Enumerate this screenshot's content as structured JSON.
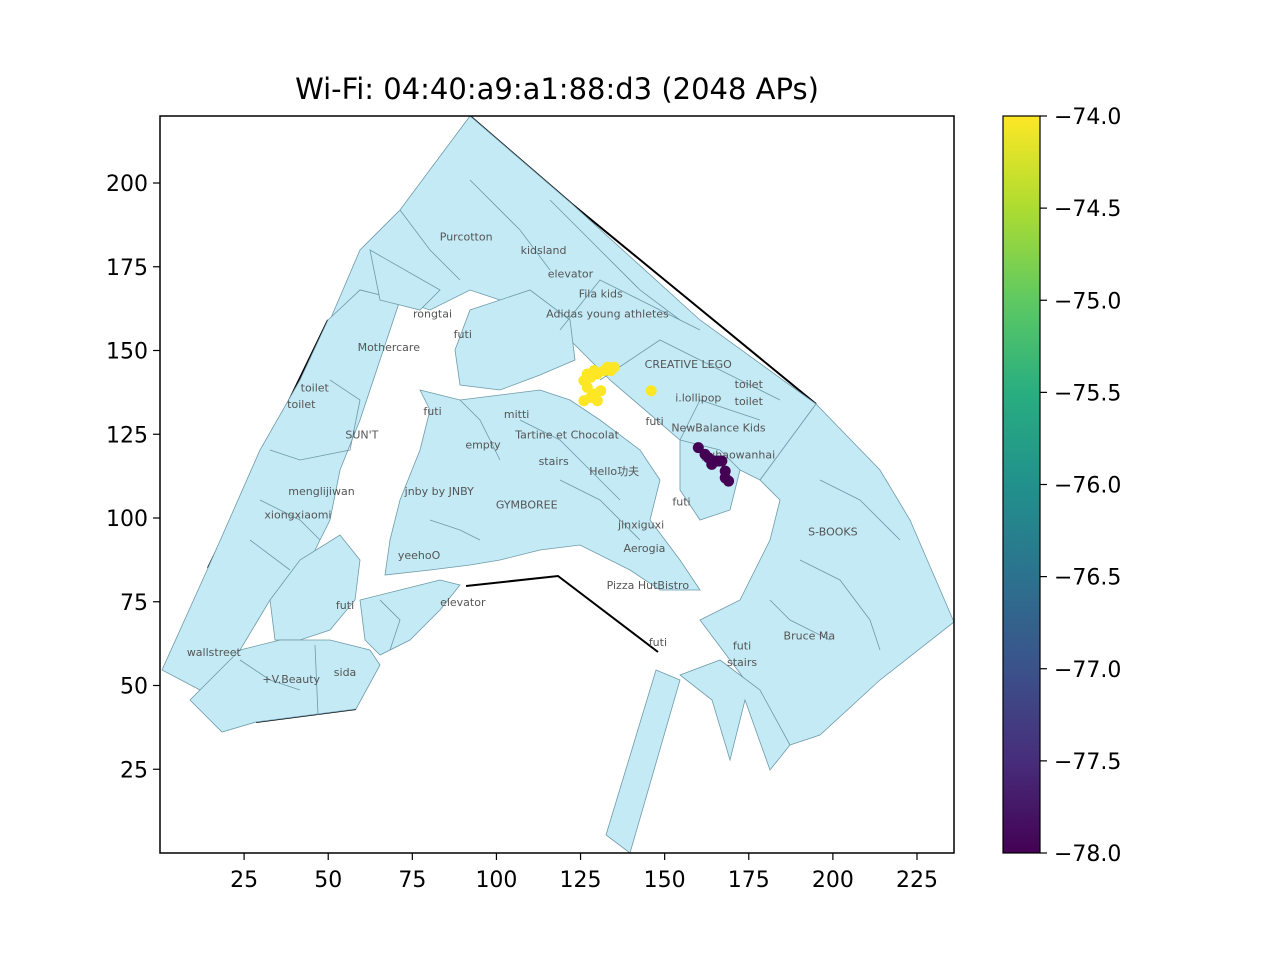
{
  "chart_data": {
    "type": "scatter",
    "title": "Wi-Fi: 04:40:a9:a1:88:d3 (2048 APs)",
    "xlabel": "",
    "ylabel": "",
    "xlim": [
      0,
      236
    ],
    "ylim": [
      0,
      220
    ],
    "x_ticks": [
      "25",
      "50",
      "75",
      "100",
      "125",
      "150",
      "175",
      "200",
      "225"
    ],
    "y_ticks": [
      "25",
      "50",
      "75",
      "100",
      "125",
      "150",
      "175",
      "200"
    ],
    "grid": false,
    "colormap": "viridis",
    "colorbar": {
      "range": [
        -78.0,
        -74.0
      ],
      "ticks": [
        "−74.0",
        "−74.5",
        "−75.0",
        "−75.5",
        "−76.0",
        "−76.5",
        "−77.0",
        "−77.5",
        "−78.0"
      ]
    },
    "background_color": "#c3eaf5",
    "points": [
      {
        "x": 126,
        "y": 141,
        "value": -74.0
      },
      {
        "x": 127,
        "y": 143,
        "value": -74.0
      },
      {
        "x": 128,
        "y": 142,
        "value": -74.0
      },
      {
        "x": 129,
        "y": 144,
        "value": -74.0
      },
      {
        "x": 130,
        "y": 143,
        "value": -74.0
      },
      {
        "x": 132,
        "y": 144,
        "value": -74.0
      },
      {
        "x": 133,
        "y": 145,
        "value": -74.0
      },
      {
        "x": 134,
        "y": 144,
        "value": -74.0
      },
      {
        "x": 135,
        "y": 145,
        "value": -74.0
      },
      {
        "x": 131,
        "y": 138,
        "value": -74.0
      },
      {
        "x": 127,
        "y": 139,
        "value": -74.0
      },
      {
        "x": 128,
        "y": 136,
        "value": -74.0
      },
      {
        "x": 126,
        "y": 135,
        "value": -74.0
      },
      {
        "x": 129,
        "y": 137,
        "value": -74.0
      },
      {
        "x": 130,
        "y": 135,
        "value": -74.0
      },
      {
        "x": 146,
        "y": 138,
        "value": -74.0
      },
      {
        "x": 160,
        "y": 121,
        "value": -78.0
      },
      {
        "x": 162,
        "y": 119,
        "value": -78.0
      },
      {
        "x": 163,
        "y": 118,
        "value": -78.0
      },
      {
        "x": 165,
        "y": 117,
        "value": -78.0
      },
      {
        "x": 166,
        "y": 117,
        "value": -78.0
      },
      {
        "x": 167,
        "y": 117,
        "value": -78.0
      },
      {
        "x": 164,
        "y": 116,
        "value": -78.0
      },
      {
        "x": 168,
        "y": 114,
        "value": -78.0
      },
      {
        "x": 168,
        "y": 112,
        "value": -78.0
      },
      {
        "x": 169,
        "y": 111,
        "value": -78.0
      }
    ],
    "labels": [
      {
        "text": "Purcotton",
        "x": 91,
        "y": 184
      },
      {
        "text": "kidsland",
        "x": 114,
        "y": 180
      },
      {
        "text": "elevator",
        "x": 122,
        "y": 173
      },
      {
        "text": "Fila kids",
        "x": 131,
        "y": 167
      },
      {
        "text": "Adidas young athletes",
        "x": 133,
        "y": 161
      },
      {
        "text": "rongtai",
        "x": 81,
        "y": 161
      },
      {
        "text": "futi",
        "x": 90,
        "y": 155
      },
      {
        "text": "Mothercare",
        "x": 68,
        "y": 151
      },
      {
        "text": "CREATIVE LEGO",
        "x": 157,
        "y": 146
      },
      {
        "text": "toilet",
        "x": 46,
        "y": 139
      },
      {
        "text": "toilet",
        "x": 42,
        "y": 134
      },
      {
        "text": "toilet",
        "x": 175,
        "y": 140
      },
      {
        "text": "toilet",
        "x": 175,
        "y": 135
      },
      {
        "text": "i.lollipop",
        "x": 160,
        "y": 136
      },
      {
        "text": "futi",
        "x": 81,
        "y": 132
      },
      {
        "text": "mitti",
        "x": 106,
        "y": 131
      },
      {
        "text": "futi",
        "x": 147,
        "y": 129
      },
      {
        "text": "NewBalance Kids",
        "x": 166,
        "y": 127
      },
      {
        "text": "SUN'T",
        "x": 60,
        "y": 125
      },
      {
        "text": "Tartine et Chocolat",
        "x": 121,
        "y": 125
      },
      {
        "text": "empty",
        "x": 96,
        "y": 122
      },
      {
        "text": "jiuhaowanhai",
        "x": 172,
        "y": 119
      },
      {
        "text": "stairs",
        "x": 117,
        "y": 117
      },
      {
        "text": "Hello功夫",
        "x": 135,
        "y": 114
      },
      {
        "text": "menglijiwan",
        "x": 48,
        "y": 108
      },
      {
        "text": "jnby by JNBY",
        "x": 83,
        "y": 108
      },
      {
        "text": "futi",
        "x": 155,
        "y": 105
      },
      {
        "text": "GYMBOREE",
        "x": 109,
        "y": 104
      },
      {
        "text": "xiongxiaomi",
        "x": 41,
        "y": 101
      },
      {
        "text": "jinxiguxi",
        "x": 143,
        "y": 98
      },
      {
        "text": "S-BOOKS",
        "x": 200,
        "y": 96
      },
      {
        "text": "Aerogia",
        "x": 144,
        "y": 91
      },
      {
        "text": "yeehoO",
        "x": 77,
        "y": 89
      },
      {
        "text": "Pizza HutBistro",
        "x": 145,
        "y": 80
      },
      {
        "text": "elevator",
        "x": 90,
        "y": 75
      },
      {
        "text": "futi",
        "x": 55,
        "y": 74
      },
      {
        "text": "Bruce Ma",
        "x": 193,
        "y": 65
      },
      {
        "text": "futi",
        "x": 148,
        "y": 63
      },
      {
        "text": "futi",
        "x": 173,
        "y": 62
      },
      {
        "text": "wallstreet",
        "x": 16,
        "y": 60
      },
      {
        "text": "stairs",
        "x": 173,
        "y": 57
      },
      {
        "text": "sida",
        "x": 55,
        "y": 54
      },
      {
        "text": "+V.Beauty",
        "x": 39,
        "y": 52
      }
    ]
  }
}
